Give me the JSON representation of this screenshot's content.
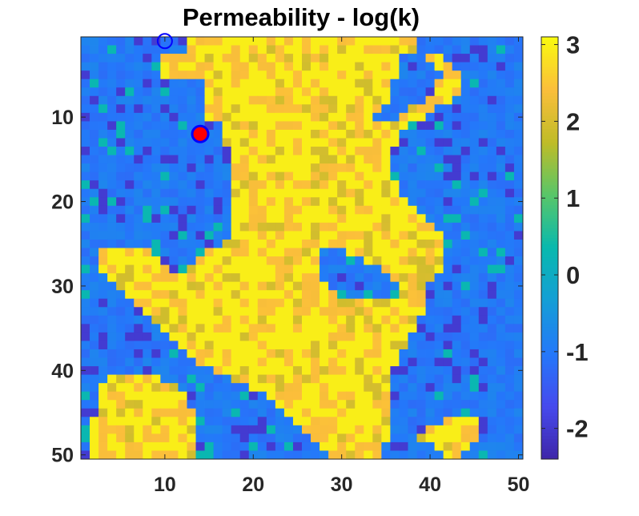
{
  "chart_data": {
    "type": "heatmap",
    "title": "Permeability - log(k)",
    "xlabel": "",
    "ylabel": "",
    "grid": false,
    "nx": 50,
    "ny": 50,
    "xlim": [
      0.5,
      50.5
    ],
    "ylim": [
      0.5,
      50.5
    ],
    "y_direction": "reversed",
    "x_ticks": [
      10,
      20,
      30,
      40,
      50
    ],
    "y_ticks": [
      10,
      20,
      30,
      40,
      50
    ],
    "x_tick_labels": [
      "10",
      "20",
      "30",
      "40",
      "50"
    ],
    "y_tick_labels": [
      "10",
      "20",
      "30",
      "40",
      "50"
    ],
    "colormap": "parula",
    "clim": [
      -2.4,
      3.1
    ],
    "colorbar": {
      "location": "right",
      "ticks": [
        3,
        2,
        1,
        0,
        -1,
        -2
      ],
      "tick_labels": [
        "3",
        "2",
        "1",
        "0",
        "-1",
        "-2"
      ]
    },
    "markers": [
      {
        "name": "",
        "x": 10,
        "y": 1,
        "style": "open-circle",
        "edge_color": "#0000ff",
        "face_color": "none"
      },
      {
        "name": "",
        "x": 14,
        "y": 12,
        "style": "filled-circle",
        "edge_color": "#0000ff",
        "face_color": "#ff0000"
      }
    ],
    "values": [
      "LLLLLLLLLLLLHHHHHHHHHHHHHHHHHHHHHHHHHHLLLLLLLLLLLL",
      "LLLLLLLLLLLLHHHHHHHHHHHHHHHHHHHHHHHHHHLLLLLLLLLLLL",
      "LLLLLLLLLHHHHHHHHHHHHHHHHHHHHHHHHHHHLLLHHLLLLLLLLL",
      "LLLLLLLLLHHHHHHHHHHHHHHHHHHHHHHHHHHHLLLLHHLLLLLLLL",
      "LLLLLLLLLHHHHHHHHHHHHHHHHHHHHHHHHHHHLLLLLHHLLLLLLL",
      "LLLLLLLLLLLLLLHHHHHHHHHHHHHHHHHHHHHLLLLLHHHLLLLLLL",
      "LLLLLLLLLLLLLLHHHHHHHHHHHHHHHHHHHHHLLLLLHHHLLLLLLL",
      "LLLLLLLLLLLLLLHHHHHHHHHHHHHHHHHHHHHLLLLHHHLLLLLLLL",
      "LLLLLLLLLLLLLLHHHHHHHHHHHHHHHHHHHHLLLHHHLLLLLLLLLL",
      "LLLLLLLLLLLLLLHHHHHHHHHHHHHHHHHHHLLLHHHLLLLLLLLLLL",
      "LLLLLLLLLLLLLLLLHHHHHHHHHHHHHHHHHHHHHLLLLLLLLLLLLL",
      "LLLLLLLLLLLLLLLLHHHHHHHHHHHHHHHHHHHHLLLLLLLLLLLLLL",
      "LLLLLLLLLLLLLLLLHHHHHHHHHHHHHHHHHHHHLLLLLLLLLLLLLL",
      "LLLLLLLLLLLLLLLLLHHHHHHHHHHHHHHHHHHLLLLLLLLLLLLLLL",
      "LLLLLLLLLLLLLLLLLHHHHHHHHHHHHHHHHHHLLLLLLLLLLLLLLL",
      "LLLLLLLLLLLLLLLLLHHHHHHHHHHHHHHHHHHLLLLLLLLLLLLLLL",
      "LLLLLLLLLLLLLLLLLHHHHHHHHHHHHHHHHHHLLLLLLLLLLLLLLL",
      "LLLLLLLLLLLLLLLLLHHHHHHHHHHHHHHHHHHHLLLLLLLLLLLLLL",
      "LLLLLLLLLLLLLLLLLHHHHHHHHHHHHHHHHHHHLLLLLLLLLLLLLL",
      "LLLLLLLLLLLLLLLLLHHHHHHHHHHHHHHHHHHHHLLLLLLLLLLLLL",
      "LLLLLLLLLLLLLLLLLHHHHHHHHHHHHHHHHHHHHHLLLLLLLLLLLL",
      "LLLLLLLLLLLLLLLLLHHHHHHHHHHHHHHHHHHHHHHLLLLLLLLLLL",
      "LLLLLLLLLLLLLLLLLHHHHHHHHHHHHHHHHHHHHHHHLLLLLLLLLL",
      "LLLLLLLLLLLLLLLLLHHHHHHHHHHHHHHHHHHHHHHHHLLLLLLLLL",
      "LLLLLLLLLLLLLLLLHHHHHHHHHHHHHHHHHHHHHHHHHLLLLLLLLL",
      "LLHHHHHHLLLLLLHHHHHHHHHHHHHLLLHHHHHHHHHHHLLLLLLLLL",
      "LLHHHHHHHLLLLHHHHHHHHHHHHHHLLLLLHHHHHHHHHLLLLLLLLL",
      "LLHHHHHHHHLLHHHHHHHHHHHHHHHLLLLLLLHHHHHHHLLLLLLLLL",
      "LLLHHHHHHHHHHHHHHHHHHHHHHHHLLLLLLLLHHHHHLLLLLLLLLL",
      "LLLLHHHHHHHHHHHHHHHHHHHHHHHHLLLLLLLLHHHLLLLLLLLLLL",
      "LLLLLHHHHHHHHHHHHHHHHHHHHHHHHLLLLLLLHHHLLLLLLLLLLL",
      "LLLLLLHHHHHHHHHHHHHHHHHHHHHHHHHHHHHHHHHLLLLLLLLLLL",
      "LLLLLLLHHHHHHHHHHHHHHHHHHHHHHHHHHHHHHHHLLLLLLLLLLL",
      "LLLLLLLLHHHHHHHHHHHHHHHHHHHHHHHHHHHHHHLLLLLLLLLLLL",
      "LLLLLLLLLHHHHHHHHHHHHHHHHHHHHHHHHHHHHHLLLLLLLLLLLL",
      "LLLLLLLLLLHHHHHHHHHHHHHHHHHHHHHHHHHHHLLLLLLLLLLLLL",
      "LLLLLLLLLLLHHHHHHHHHHHHHHHHHHHHHHHHHHLLLLLLLLLLLLL",
      "LLLLLLLLLLLLHHHHHHHHHHHHHHHHHHHHHHHHLLLLLLLLLLLLLL",
      "LLLLLLLLLLLLLHHHHHHHHHHHHHHHHHHHHHHHLLLLLLLLLLLLLL",
      "LLLLLLLLLLLLLLLHHHHHHHHHHHHHHHHHHHHLLLLLLLLLLLLLLL",
      "LLLHHHHHHLLLLLLLLHHHHHHHHHHHHHHHHHHLLLLLLLLLLLLLLL",
      "LLHHHHHHHHHLLLLLLLLHHHHHHHHHHHHHHHHLLLLLLLLLLLLLLL",
      "LLHHHHHHHHHHLLLLLLLLLHHHHHHHHHHHHHHLLLLLLLLLLLLLLL",
      "LLHHHHHHHHHHLLLLLLLLLLHHHHHHHHHHHHHLLLLLLLLLLLLLLL",
      "LLHHHHHHHHHHHLLLLLLLLLLHHHHHHHHHHHHLLLLLLLLLLLLLLL",
      "LHHHHHHHHHHHHLLLLLLLLLLLHHHHHHHHHHHLLLLLLHHHHLLLLL",
      "LHHHHHHHHHHHHLLLLLLLLLLLLHHHHHHHHHHLLLLHHHHHHLLLLL",
      "LHHHHHHHHHHHHLLLLLLLLLLLLLHHHHHHHHHLLLHHHHHHHLLLLL",
      "LHHHHHHHHHHHHLLLLLLLLLLLLLLHHHHHHHLLLLLLHHHHLLLLLL",
      "LHHHHHHHHHHHHLLLLLLLLLLLLLLLHHHHHHLLLLLLLHHLLLLLLL"
    ]
  }
}
